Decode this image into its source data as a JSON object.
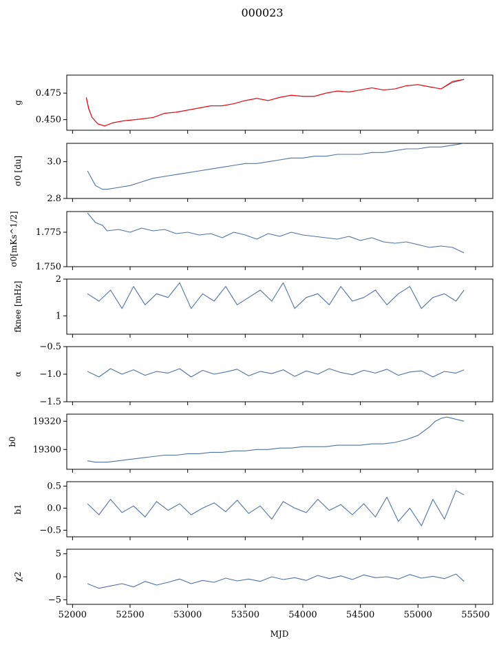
{
  "figure_title": "000023",
  "xlabel": "MJD",
  "colors": {
    "series": "#4c72a4",
    "overlay": "#ff0000",
    "axes": "#000000"
  },
  "chart_data": [
    {
      "type": "line",
      "ylabel": "g",
      "ylim": [
        0.44,
        0.492
      ],
      "yticks": [
        "0.450",
        "0.475"
      ],
      "ytick_values": [
        0.45,
        0.475
      ],
      "xlim": [
        51950,
        55650
      ],
      "series": [
        {
          "color": "#4c72a4",
          "x": [
            52120,
            52140,
            52170,
            52220,
            52280,
            52350,
            52450,
            52550,
            52700,
            52800,
            52900,
            53000,
            53100,
            53200,
            53300,
            53400,
            53500,
            53600,
            53700,
            53800,
            53900,
            54000,
            54100,
            54200,
            54300,
            54400,
            54500,
            54600,
            54700,
            54800,
            54900,
            55000,
            55100,
            55200,
            55300,
            55400
          ],
          "values": [
            0.47,
            0.46,
            0.452,
            0.446,
            0.444,
            0.447,
            0.449,
            0.45,
            0.452,
            0.456,
            0.457,
            0.459,
            0.461,
            0.463,
            0.463,
            0.465,
            0.468,
            0.47,
            0.468,
            0.471,
            0.473,
            0.472,
            0.472,
            0.475,
            0.477,
            0.476,
            0.478,
            0.48,
            0.478,
            0.479,
            0.482,
            0.483,
            0.481,
            0.479,
            0.485,
            0.488
          ]
        },
        {
          "color": "#ff0000",
          "x": [
            52120,
            52140,
            52170,
            52220,
            52280,
            52350,
            52450,
            52550,
            52700,
            52800,
            52900,
            53000,
            53100,
            53200,
            53300,
            53400,
            53500,
            53600,
            53700,
            53800,
            53900,
            54000,
            54100,
            54200,
            54300,
            54400,
            54500,
            54600,
            54700,
            54800,
            54900,
            55000,
            55100,
            55200,
            55300,
            55400
          ],
          "values": [
            0.471,
            0.461,
            0.452,
            0.446,
            0.444,
            0.447,
            0.449,
            0.45,
            0.452,
            0.456,
            0.457,
            0.459,
            0.461,
            0.463,
            0.463,
            0.465,
            0.468,
            0.47,
            0.468,
            0.471,
            0.473,
            0.472,
            0.472,
            0.475,
            0.477,
            0.476,
            0.478,
            0.48,
            0.478,
            0.479,
            0.482,
            0.483,
            0.481,
            0.479,
            0.486,
            0.488
          ]
        }
      ]
    },
    {
      "type": "line",
      "ylabel": "σ0 [du]",
      "ylim": [
        2.8,
        3.1
      ],
      "yticks": [
        "2.8",
        "3.0"
      ],
      "ytick_values": [
        2.8,
        3.0
      ],
      "xlim": [
        51950,
        55650
      ],
      "series": [
        {
          "color": "#4c72a4",
          "x": [
            52130,
            52200,
            52260,
            52300,
            52400,
            52500,
            52600,
            52700,
            52800,
            52900,
            53000,
            53100,
            53200,
            53300,
            53400,
            53500,
            53600,
            53700,
            53800,
            53900,
            54000,
            54100,
            54200,
            54300,
            54400,
            54500,
            54600,
            54700,
            54800,
            54900,
            55000,
            55100,
            55200,
            55300,
            55400
          ],
          "values": [
            2.95,
            2.87,
            2.85,
            2.85,
            2.86,
            2.87,
            2.89,
            2.91,
            2.92,
            2.93,
            2.94,
            2.95,
            2.96,
            2.97,
            2.98,
            2.99,
            2.99,
            3.0,
            3.01,
            3.02,
            3.02,
            3.03,
            3.03,
            3.04,
            3.04,
            3.04,
            3.05,
            3.05,
            3.06,
            3.07,
            3.07,
            3.08,
            3.08,
            3.09,
            3.1
          ]
        }
      ]
    },
    {
      "type": "line",
      "ylabel": "σ0[mKs^1/2]",
      "ylim": [
        1.75,
        1.79
      ],
      "yticks": [
        "1.750",
        "1.775"
      ],
      "ytick_values": [
        1.75,
        1.775
      ],
      "xlim": [
        51950,
        55650
      ],
      "series": [
        {
          "color": "#4c72a4",
          "x": [
            52130,
            52200,
            52260,
            52300,
            52400,
            52500,
            52600,
            52700,
            52800,
            52900,
            53000,
            53100,
            53200,
            53300,
            53400,
            53500,
            53600,
            53700,
            53800,
            53900,
            54000,
            54100,
            54200,
            54300,
            54400,
            54500,
            54600,
            54700,
            54800,
            54900,
            55000,
            55100,
            55200,
            55300,
            55400
          ],
          "values": [
            1.789,
            1.782,
            1.78,
            1.776,
            1.777,
            1.775,
            1.778,
            1.776,
            1.777,
            1.774,
            1.775,
            1.773,
            1.774,
            1.771,
            1.775,
            1.773,
            1.77,
            1.774,
            1.772,
            1.775,
            1.773,
            1.772,
            1.771,
            1.77,
            1.772,
            1.769,
            1.771,
            1.768,
            1.767,
            1.768,
            1.766,
            1.764,
            1.765,
            1.764,
            1.76
          ]
        }
      ]
    },
    {
      "type": "line",
      "ylabel": "fknee [mHz]",
      "ylim": [
        0.5,
        2.0
      ],
      "yticks": [
        "1",
        "2"
      ],
      "ytick_values": [
        1,
        2
      ],
      "xlim": [
        51950,
        55650
      ],
      "series": [
        {
          "color": "#4c72a4",
          "x": [
            52130,
            52230,
            52330,
            52430,
            52530,
            52630,
            52730,
            52830,
            52930,
            53030,
            53130,
            53230,
            53330,
            53430,
            53530,
            53630,
            53730,
            53830,
            53930,
            54030,
            54130,
            54230,
            54330,
            54430,
            54530,
            54630,
            54730,
            54830,
            54930,
            55030,
            55130,
            55230,
            55330,
            55400
          ],
          "values": [
            1.6,
            1.4,
            1.7,
            1.2,
            1.8,
            1.3,
            1.6,
            1.5,
            1.9,
            1.2,
            1.6,
            1.4,
            1.8,
            1.3,
            1.5,
            1.7,
            1.4,
            1.9,
            1.2,
            1.5,
            1.6,
            1.3,
            1.8,
            1.4,
            1.5,
            1.7,
            1.3,
            1.6,
            1.8,
            1.2,
            1.5,
            1.6,
            1.4,
            1.7
          ]
        }
      ]
    },
    {
      "type": "line",
      "ylabel": "α",
      "ylim": [
        -1.5,
        -0.5
      ],
      "yticks": [
        "−1.5",
        "−1.0",
        "−0.5"
      ],
      "ytick_values": [
        -1.5,
        -1.0,
        -0.5
      ],
      "xlim": [
        51950,
        55650
      ],
      "series": [
        {
          "color": "#4c72a4",
          "x": [
            52130,
            52230,
            52330,
            52430,
            52530,
            52630,
            52730,
            52830,
            52930,
            53030,
            53130,
            53230,
            53330,
            53430,
            53530,
            53630,
            53730,
            53830,
            53930,
            54030,
            54130,
            54230,
            54330,
            54430,
            54530,
            54630,
            54730,
            54830,
            54930,
            55030,
            55130,
            55230,
            55330,
            55400
          ],
          "values": [
            -0.95,
            -1.05,
            -0.9,
            -1.0,
            -0.92,
            -1.02,
            -0.95,
            -0.98,
            -0.9,
            -1.05,
            -0.93,
            -1.0,
            -0.96,
            -0.91,
            -1.03,
            -0.95,
            -0.99,
            -0.92,
            -1.04,
            -0.94,
            -1.0,
            -0.9,
            -0.97,
            -1.01,
            -0.93,
            -0.98,
            -0.91,
            -1.02,
            -0.96,
            -0.94,
            -1.05,
            -0.95,
            -0.98,
            -0.92
          ]
        }
      ]
    },
    {
      "type": "line",
      "ylabel": "b0",
      "ylim": [
        19286,
        19325
      ],
      "yticks": [
        "19300",
        "19320"
      ],
      "ytick_values": [
        19300,
        19320
      ],
      "xlim": [
        51950,
        55650
      ],
      "series": [
        {
          "color": "#4c72a4",
          "x": [
            52130,
            52200,
            52250,
            52300,
            52400,
            52500,
            52600,
            52700,
            52800,
            52900,
            53000,
            53100,
            53200,
            53300,
            53400,
            53500,
            53600,
            53700,
            53800,
            53900,
            54000,
            54100,
            54200,
            54300,
            54400,
            54500,
            54600,
            54700,
            54800,
            54900,
            55000,
            55100,
            55150,
            55200,
            55250,
            55300,
            55400
          ],
          "values": [
            19292,
            19291,
            19291,
            19291,
            19292,
            19293,
            19294,
            19295,
            19296,
            19296,
            19297,
            19297,
            19298,
            19298,
            19299,
            19299,
            19300,
            19300,
            19301,
            19301,
            19302,
            19302,
            19302,
            19303,
            19303,
            19303,
            19304,
            19304,
            19305,
            19307,
            19310,
            19316,
            19320,
            19322,
            19323,
            19322,
            19320
          ]
        }
      ]
    },
    {
      "type": "line",
      "ylabel": "b1",
      "ylim": [
        -0.65,
        0.6
      ],
      "yticks": [
        "−0.5",
        "0.0",
        "0.5"
      ],
      "ytick_values": [
        -0.5,
        0.0,
        0.5
      ],
      "xlim": [
        51950,
        55650
      ],
      "series": [
        {
          "color": "#4c72a4",
          "x": [
            52130,
            52230,
            52330,
            52430,
            52530,
            52630,
            52730,
            52830,
            52930,
            53030,
            53130,
            53230,
            53330,
            53430,
            53530,
            53630,
            53730,
            53830,
            53930,
            54030,
            54130,
            54230,
            54330,
            54430,
            54530,
            54630,
            54730,
            54830,
            54930,
            55030,
            55130,
            55230,
            55330,
            55400
          ],
          "values": [
            0.1,
            -0.15,
            0.2,
            -0.1,
            0.05,
            -0.2,
            0.15,
            -0.05,
            0.1,
            -0.15,
            0.0,
            0.12,
            -0.08,
            0.18,
            -0.12,
            0.05,
            -0.25,
            0.15,
            0.0,
            -0.1,
            0.2,
            -0.05,
            0.08,
            -0.15,
            0.1,
            -0.2,
            0.25,
            -0.3,
            0.0,
            -0.4,
            0.2,
            -0.25,
            0.4,
            0.3
          ]
        }
      ]
    },
    {
      "type": "line",
      "ylabel": "χ2",
      "ylim": [
        -6,
        6
      ],
      "yticks": [
        "−5",
        "0",
        "5"
      ],
      "ytick_values": [
        -5,
        0,
        5
      ],
      "xticks": [
        "52000",
        "52500",
        "53000",
        "53500",
        "54000",
        "54500",
        "55000",
        "55500"
      ],
      "xtick_values": [
        52000,
        52500,
        53000,
        53500,
        54000,
        54500,
        55000,
        55500
      ],
      "xlim": [
        51950,
        55650
      ],
      "series": [
        {
          "color": "#4c72a4",
          "x": [
            52130,
            52230,
            52330,
            52430,
            52530,
            52630,
            52730,
            52830,
            52930,
            53030,
            53130,
            53230,
            53330,
            53430,
            53530,
            53630,
            53730,
            53830,
            53930,
            54030,
            54130,
            54230,
            54330,
            54430,
            54530,
            54630,
            54730,
            54830,
            54930,
            55030,
            55130,
            55230,
            55330,
            55400
          ],
          "values": [
            -1.5,
            -2.5,
            -2.0,
            -1.5,
            -2.2,
            -1.0,
            -1.8,
            -1.2,
            -0.5,
            -1.5,
            -0.8,
            -1.2,
            -0.3,
            -0.9,
            -0.5,
            -1.0,
            0.0,
            -0.6,
            -0.2,
            -0.8,
            0.3,
            -0.4,
            0.2,
            -0.6,
            0.4,
            -0.2,
            0.0,
            -0.5,
            0.5,
            -0.3,
            0.1,
            -0.4,
            0.6,
            -1.0
          ]
        }
      ]
    }
  ]
}
